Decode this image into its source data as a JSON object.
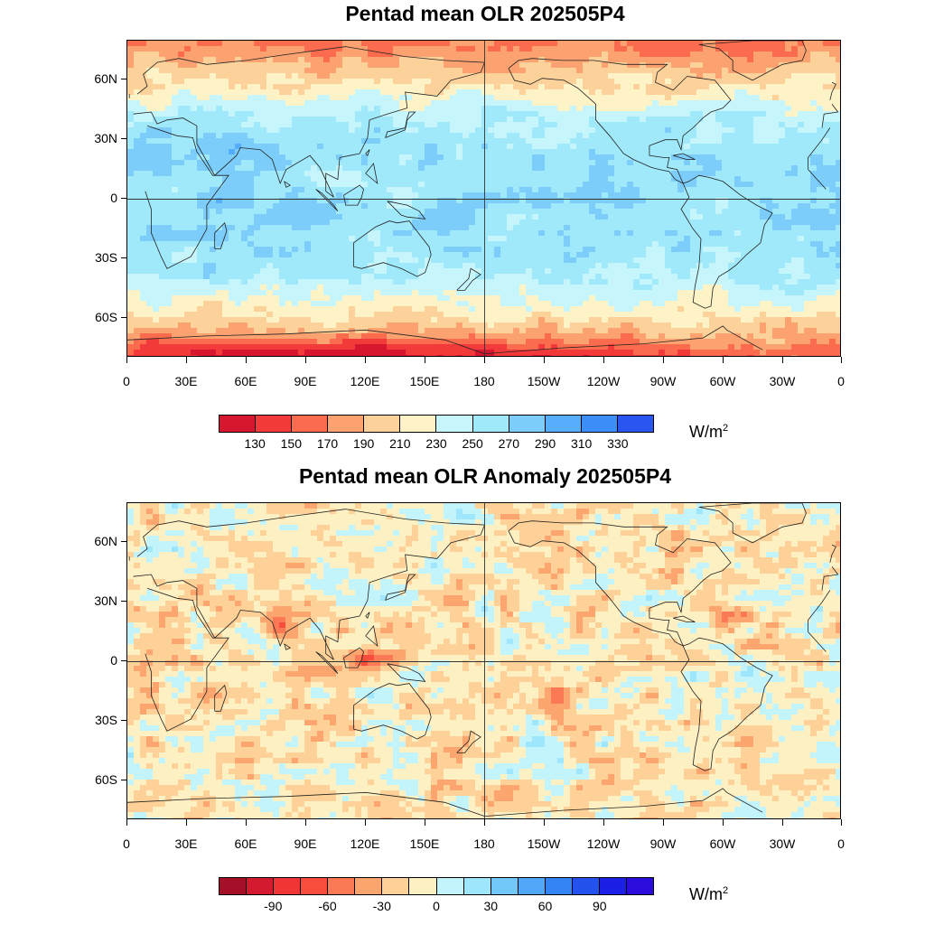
{
  "panels": [
    {
      "title": "Pentad mean OLR 202505P4",
      "colorbar": {
        "colors": [
          "#d7172f",
          "#f23a3b",
          "#fb6c4e",
          "#fca270",
          "#fdd29a",
          "#fdf3c6",
          "#c6f6fb",
          "#a0e9fb",
          "#7ccdfa",
          "#57aefa",
          "#3c8ff8",
          "#2955f0"
        ],
        "labels": [
          "130",
          "150",
          "170",
          "190",
          "210",
          "230",
          "250",
          "270",
          "290",
          "310",
          "330"
        ],
        "unit": "W/m",
        "unit_exp": "2"
      }
    },
    {
      "title": "Pentad mean OLR Anomaly 202505P4",
      "colorbar": {
        "colors": [
          "#a50f27",
          "#d41a2e",
          "#ef3535",
          "#f84c3c",
          "#fb7a55",
          "#fca56f",
          "#fdd197",
          "#fdf0c2",
          "#c3f3fb",
          "#9de6fb",
          "#72c8f9",
          "#51a8f8",
          "#3484f5",
          "#2452ee",
          "#1c20e6",
          "#2a0ddc"
        ],
        "labels": [
          "-90",
          "-60",
          "-30",
          "0",
          "30",
          "60",
          "90"
        ],
        "unit": "W/m",
        "unit_exp": "2"
      }
    }
  ],
  "axes": {
    "y_labels": [
      "60N",
      "30N",
      "0",
      "30S",
      "60S"
    ],
    "x_labels": [
      "0",
      "30E",
      "60E",
      "90E",
      "120E",
      "150E",
      "180",
      "150W",
      "120W",
      "90W",
      "60W",
      "30W",
      "0"
    ]
  },
  "map": {
    "projection": "cylindrical equidistant",
    "lon_range": [
      0,
      360
    ],
    "lat_range": [
      -80,
      80
    ],
    "equator_line": true,
    "dateline_line": true,
    "coastlines": true
  }
}
